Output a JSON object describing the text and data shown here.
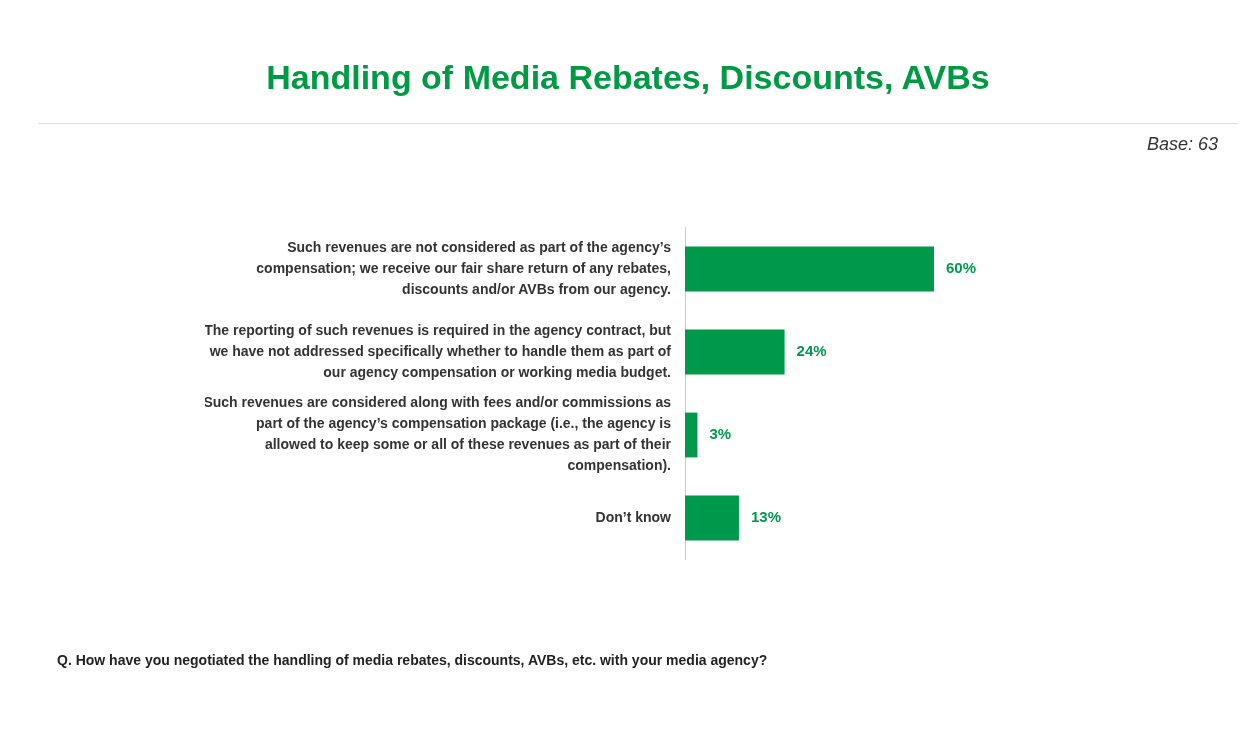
{
  "chart_data": {
    "type": "bar",
    "orientation": "horizontal",
    "title": "Handling of Media Rebates, Discounts, AVBs",
    "categories": [
      "Such revenues are not considered as part of the agency’s compensation; we receive our fair share return of any rebates, discounts and/or AVBs from our agency.",
      "The reporting of such revenues is required in the agency contract, but we have not addressed specifically whether to handle them as part of our agency compensation or working media budget.",
      "Such revenues are considered along with fees and/or commissions as part of the agency’s compensation package (i.e., the agency is allowed to keep some or all of these revenues as part of their compensation).",
      "Don’t know"
    ],
    "values": [
      60,
      24,
      3,
      13
    ],
    "color": "#00994c",
    "value_labels": [
      "60%",
      "24%",
      "3%",
      "13%"
    ],
    "annotations": [
      "Base: 63",
      "Q. How have you negotiated the handling of media rebates, discounts, AVBs, etc. with your media agency?"
    ],
    "grid": false,
    "legend": false
  }
}
